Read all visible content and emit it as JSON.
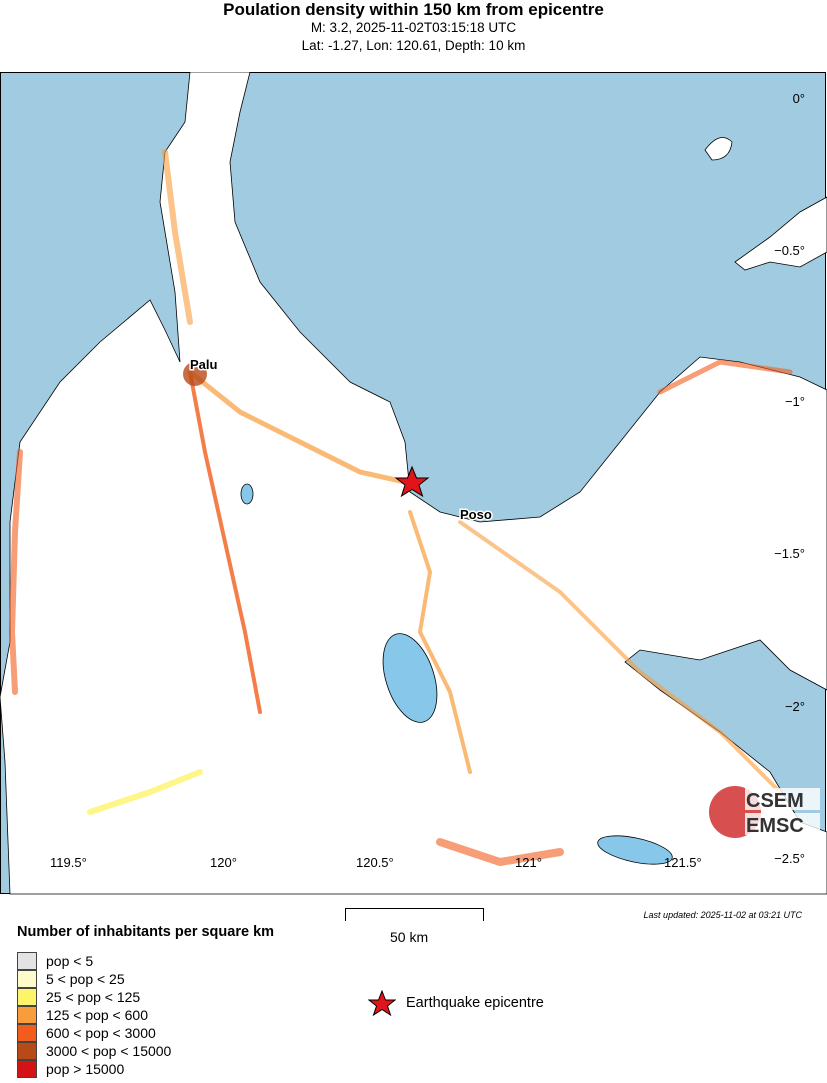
{
  "header": {
    "title": "Poulation density within 150 km from epicentre",
    "line1": "M: 3.2,  2025-11-02T03:15:18 UTC",
    "line2": "Lat: -1.27, Lon: 120.61, Depth: 10 km"
  },
  "map": {
    "colors": {
      "sea": "#a0cbe0",
      "land": "#ffffff",
      "lake": "#87c8ea",
      "epicentre": "#e0141a"
    },
    "places": [
      "Palu",
      "Poso"
    ],
    "lon_ticks": [
      "119.5°",
      "120°",
      "120.5°",
      "121°",
      "121.5°"
    ],
    "lat_ticks": [
      "0°",
      "−0.5°",
      "−1°",
      "−1.5°",
      "−2°",
      "−2.5°"
    ],
    "logo": [
      "CSEM",
      "EMSC"
    ]
  },
  "legend": {
    "title": "Number of inhabitants per square km",
    "items": [
      {
        "label": "pop < 5",
        "color": "#e3e3e3"
      },
      {
        "label": "5 < pop < 25",
        "color": "#fefbcb"
      },
      {
        "label": "25 < pop < 125",
        "color": "#fef46a"
      },
      {
        "label": "125 < pop < 600",
        "color": "#f89c3c"
      },
      {
        "label": "600 < pop < 3000",
        "color": "#f25c1c"
      },
      {
        "label": "3000 < pop < 15000",
        "color": "#b84a18"
      },
      {
        "label": "pop > 15000",
        "color": "#d41414"
      }
    ],
    "epicentre_label": "Earthquake epicentre"
  },
  "scale": {
    "label": "50 km"
  },
  "updated": "Last updated: 2025-11-02 at 03:21 UTC"
}
